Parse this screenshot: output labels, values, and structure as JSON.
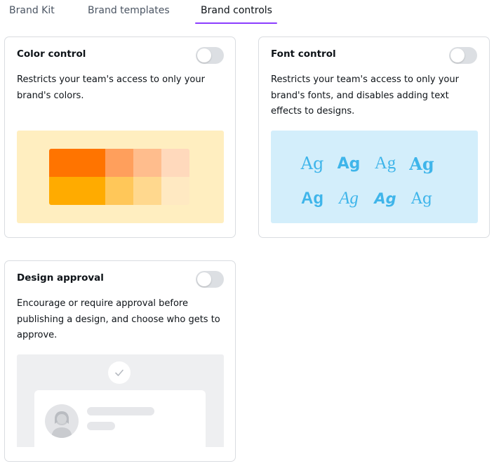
{
  "tabs": [
    {
      "label": "Brand Kit",
      "active": false
    },
    {
      "label": "Brand templates",
      "active": false
    },
    {
      "label": "Brand controls",
      "active": true
    }
  ],
  "accent_color": "#8b3dff",
  "cards": {
    "color_control": {
      "title": "Color control",
      "description": "Restricts your team's access to only your brand's colors.",
      "toggle_on": false,
      "preview_bg": "#ffeec0",
      "swatches": [
        "#ff7400",
        "#ff9f5c",
        "#ffbd8d",
        "#ffd9bc",
        "#ffab00",
        "#ffc759",
        "#ffd88e",
        "#ffe9c2"
      ]
    },
    "font_control": {
      "title": "Font control",
      "description": "Restricts your team's access to only your brand's fonts, and disables adding text effects to designs.",
      "toggle_on": false,
      "preview_bg": "#d3eefb",
      "sample_text": "Ag"
    },
    "design_approval": {
      "title": "Design approval",
      "description": "Encourage or require approval before publishing a design, and choose who gets to approve.",
      "toggle_on": false,
      "preview_bg": "#eeeff1",
      "icons": [
        "check-icon",
        "person-icon"
      ]
    }
  }
}
